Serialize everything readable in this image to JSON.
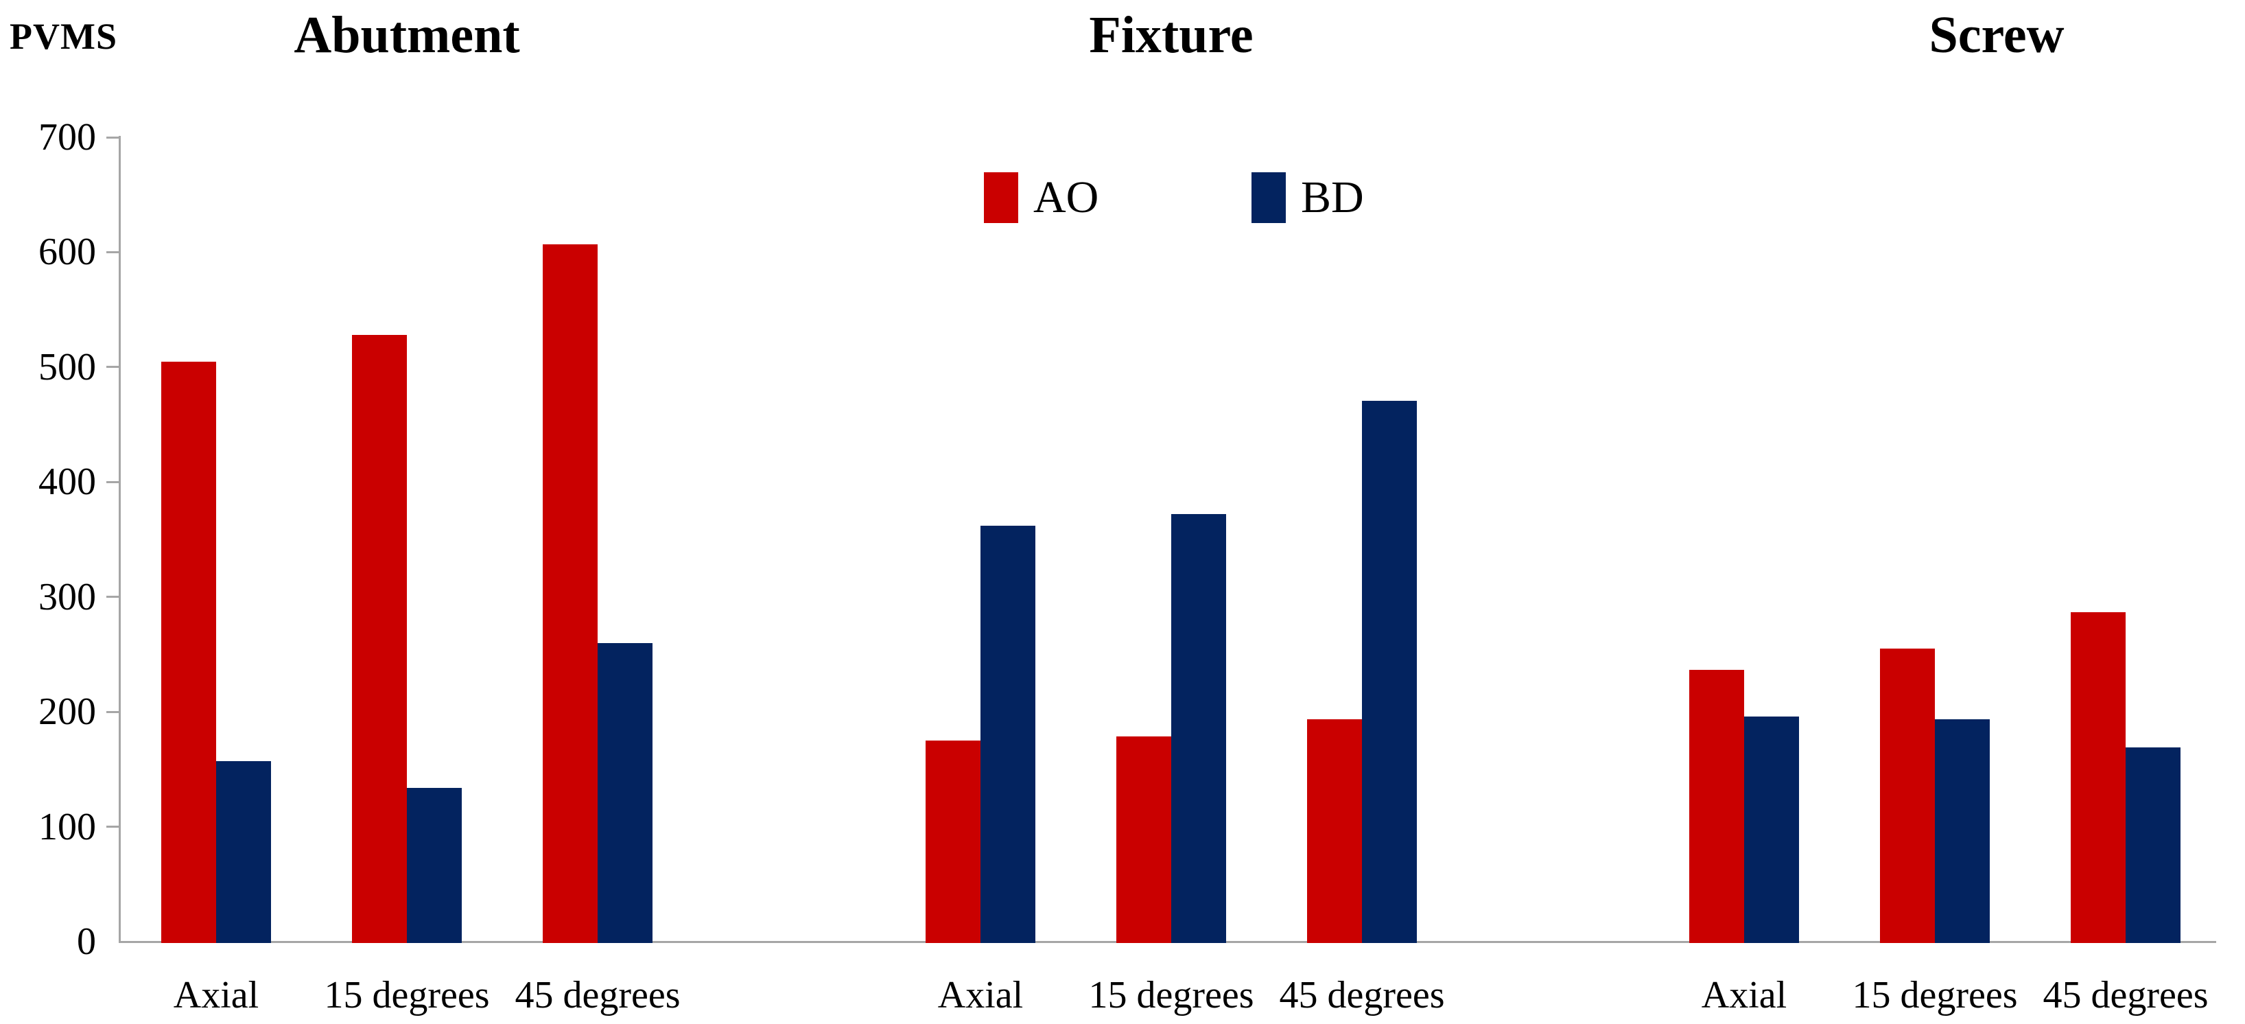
{
  "chart_data": {
    "type": "bar",
    "ylabel": "PVMS",
    "ylim": [
      0,
      700
    ],
    "ytick_step": 100,
    "yticks": [
      0,
      100,
      200,
      300,
      400,
      500,
      600,
      700
    ],
    "grid": false,
    "legend_position": "top-center",
    "axis_color": "#a6a6a6",
    "categories": [
      "Axial",
      "15 degrees",
      "45 degrees"
    ],
    "series": [
      {
        "name": "AO",
        "color": "#ca0000"
      },
      {
        "name": "BD",
        "color": "#03235f"
      }
    ],
    "groups": [
      {
        "title": "Abutment",
        "values": {
          "AO": [
            506,
            529,
            608
          ],
          "BD": [
            158,
            135,
            261
          ]
        }
      },
      {
        "title": "Fixture",
        "values": {
          "AO": [
            176,
            180,
            195
          ],
          "BD": [
            363,
            373,
            472
          ]
        }
      },
      {
        "title": "Screw",
        "values": {
          "AO": [
            238,
            256,
            288
          ],
          "BD": [
            197,
            195,
            170
          ]
        }
      }
    ]
  }
}
